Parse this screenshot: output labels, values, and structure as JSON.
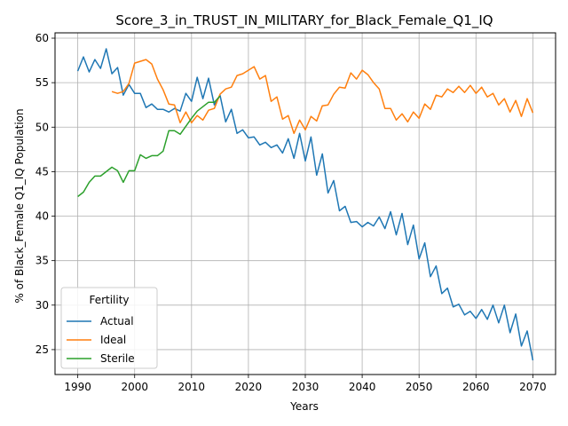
{
  "chart_data": {
    "type": "line",
    "title": "Score_3_in_TRUST_IN_MILITARY_for_Black_Female_Q1_IQ",
    "xlabel": "Years",
    "ylabel": "% of Black_Female Q1_IQ Population",
    "xlim": [
      1986,
      2074
    ],
    "ylim": [
      22.2,
      60.6
    ],
    "xticks": [
      1990,
      2000,
      2010,
      2020,
      2030,
      2040,
      2050,
      2060,
      2070
    ],
    "yticks": [
      25,
      30,
      35,
      40,
      45,
      50,
      55,
      60
    ],
    "grid": true,
    "legend": {
      "title": "Fertility",
      "placement": "lower-left"
    },
    "series": [
      {
        "name": "Actual",
        "color": "#1f77b4",
        "x": [
          1990,
          1991,
          1992,
          1993,
          1994,
          1995,
          1996,
          1997,
          1998,
          1999,
          2000,
          2001,
          2002,
          2003,
          2004,
          2005,
          2006,
          2007,
          2008,
          2009,
          2010,
          2011,
          2012,
          2013,
          2014,
          2015,
          2016,
          2017,
          2018,
          2019,
          2020,
          2021,
          2022,
          2023,
          2024,
          2025,
          2026,
          2027,
          2028,
          2029,
          2030,
          2031,
          2032,
          2033,
          2034,
          2035,
          2036,
          2037,
          2038,
          2039,
          2040,
          2041,
          2042,
          2043,
          2044,
          2045,
          2046,
          2047,
          2048,
          2049,
          2050,
          2051,
          2052,
          2053,
          2054,
          2055,
          2056,
          2057,
          2058,
          2059,
          2060,
          2061,
          2062,
          2063,
          2064,
          2065,
          2066,
          2067,
          2068,
          2069,
          2070
        ],
        "values": [
          56.3,
          57.9,
          56.2,
          57.6,
          56.6,
          58.8,
          56.0,
          56.7,
          53.6,
          54.8,
          53.8,
          53.8,
          52.2,
          52.6,
          52.0,
          52.0,
          51.7,
          52.1,
          51.8,
          53.8,
          52.9,
          55.6,
          53.2,
          55.5,
          52.5,
          53.6,
          50.6,
          52.0,
          49.3,
          49.7,
          48.8,
          48.9,
          48.0,
          48.3,
          47.7,
          48.0,
          47.1,
          48.7,
          46.5,
          49.3,
          46.2,
          48.9,
          44.6,
          47.0,
          42.6,
          44.0,
          40.6,
          41.1,
          39.3,
          39.4,
          38.8,
          39.3,
          38.9,
          39.9,
          38.6,
          40.5,
          37.9,
          40.3,
          36.8,
          39.0,
          35.2,
          37.0,
          33.2,
          34.4,
          31.3,
          31.9,
          29.8,
          30.1,
          28.9,
          29.3,
          28.5,
          29.5,
          28.4,
          30.0,
          28.0,
          30.0,
          26.9,
          29.0,
          25.4,
          27.1,
          23.8
        ]
      },
      {
        "name": "Ideal",
        "color": "#ff7f0e",
        "x": [
          1996,
          1997,
          1998,
          1999,
          2000,
          2001,
          2002,
          2003,
          2004,
          2005,
          2006,
          2007,
          2008,
          2009,
          2010,
          2011,
          2012,
          2013,
          2014,
          2015,
          2016,
          2017,
          2018,
          2019,
          2020,
          2021,
          2022,
          2023,
          2024,
          2025,
          2026,
          2027,
          2028,
          2029,
          2030,
          2031,
          2032,
          2033,
          2034,
          2035,
          2036,
          2037,
          2038,
          2039,
          2040,
          2041,
          2042,
          2043,
          2044,
          2045,
          2046,
          2047,
          2048,
          2049,
          2050,
          2051,
          2052,
          2053,
          2054,
          2055,
          2056,
          2057,
          2058,
          2059,
          2060,
          2061,
          2062,
          2063,
          2064,
          2065,
          2066,
          2067,
          2068,
          2069,
          2070
        ],
        "values": [
          54.0,
          53.8,
          54.0,
          54.9,
          57.2,
          57.4,
          57.6,
          57.1,
          55.4,
          54.2,
          52.6,
          52.5,
          50.5,
          51.7,
          50.5,
          51.3,
          50.8,
          51.9,
          52.1,
          53.7,
          54.3,
          54.5,
          55.8,
          56.0,
          56.4,
          56.8,
          55.4,
          55.8,
          52.9,
          53.4,
          50.9,
          51.3,
          49.3,
          50.8,
          49.7,
          51.2,
          50.7,
          52.4,
          52.5,
          53.7,
          54.5,
          54.4,
          56.1,
          55.4,
          56.4,
          55.9,
          55.0,
          54.3,
          52.1,
          52.1,
          50.8,
          51.5,
          50.6,
          51.7,
          51.0,
          52.6,
          52.0,
          53.6,
          53.4,
          54.3,
          53.9,
          54.6,
          53.9,
          54.7,
          53.8,
          54.5,
          53.4,
          53.8,
          52.5,
          53.2,
          51.7,
          53.0,
          51.2,
          53.2,
          51.6
        ]
      },
      {
        "name": "Sterile",
        "color": "#2ca02c",
        "x": [
          1990,
          1991,
          1992,
          1993,
          1994,
          1995,
          1996,
          1997,
          1998,
          1999,
          2000,
          2001,
          2002,
          2003,
          2004,
          2005,
          2006,
          2007,
          2008,
          2009,
          2010,
          2011,
          2012,
          2013,
          2014,
          2015
        ],
        "values": [
          42.2,
          42.7,
          43.8,
          44.5,
          44.5,
          45.0,
          45.5,
          45.1,
          43.8,
          45.1,
          45.1,
          46.9,
          46.5,
          46.8,
          46.8,
          47.3,
          49.6,
          49.6,
          49.2,
          50.1,
          51.0,
          51.8,
          52.3,
          52.8,
          52.8,
          53.5
        ]
      }
    ]
  }
}
